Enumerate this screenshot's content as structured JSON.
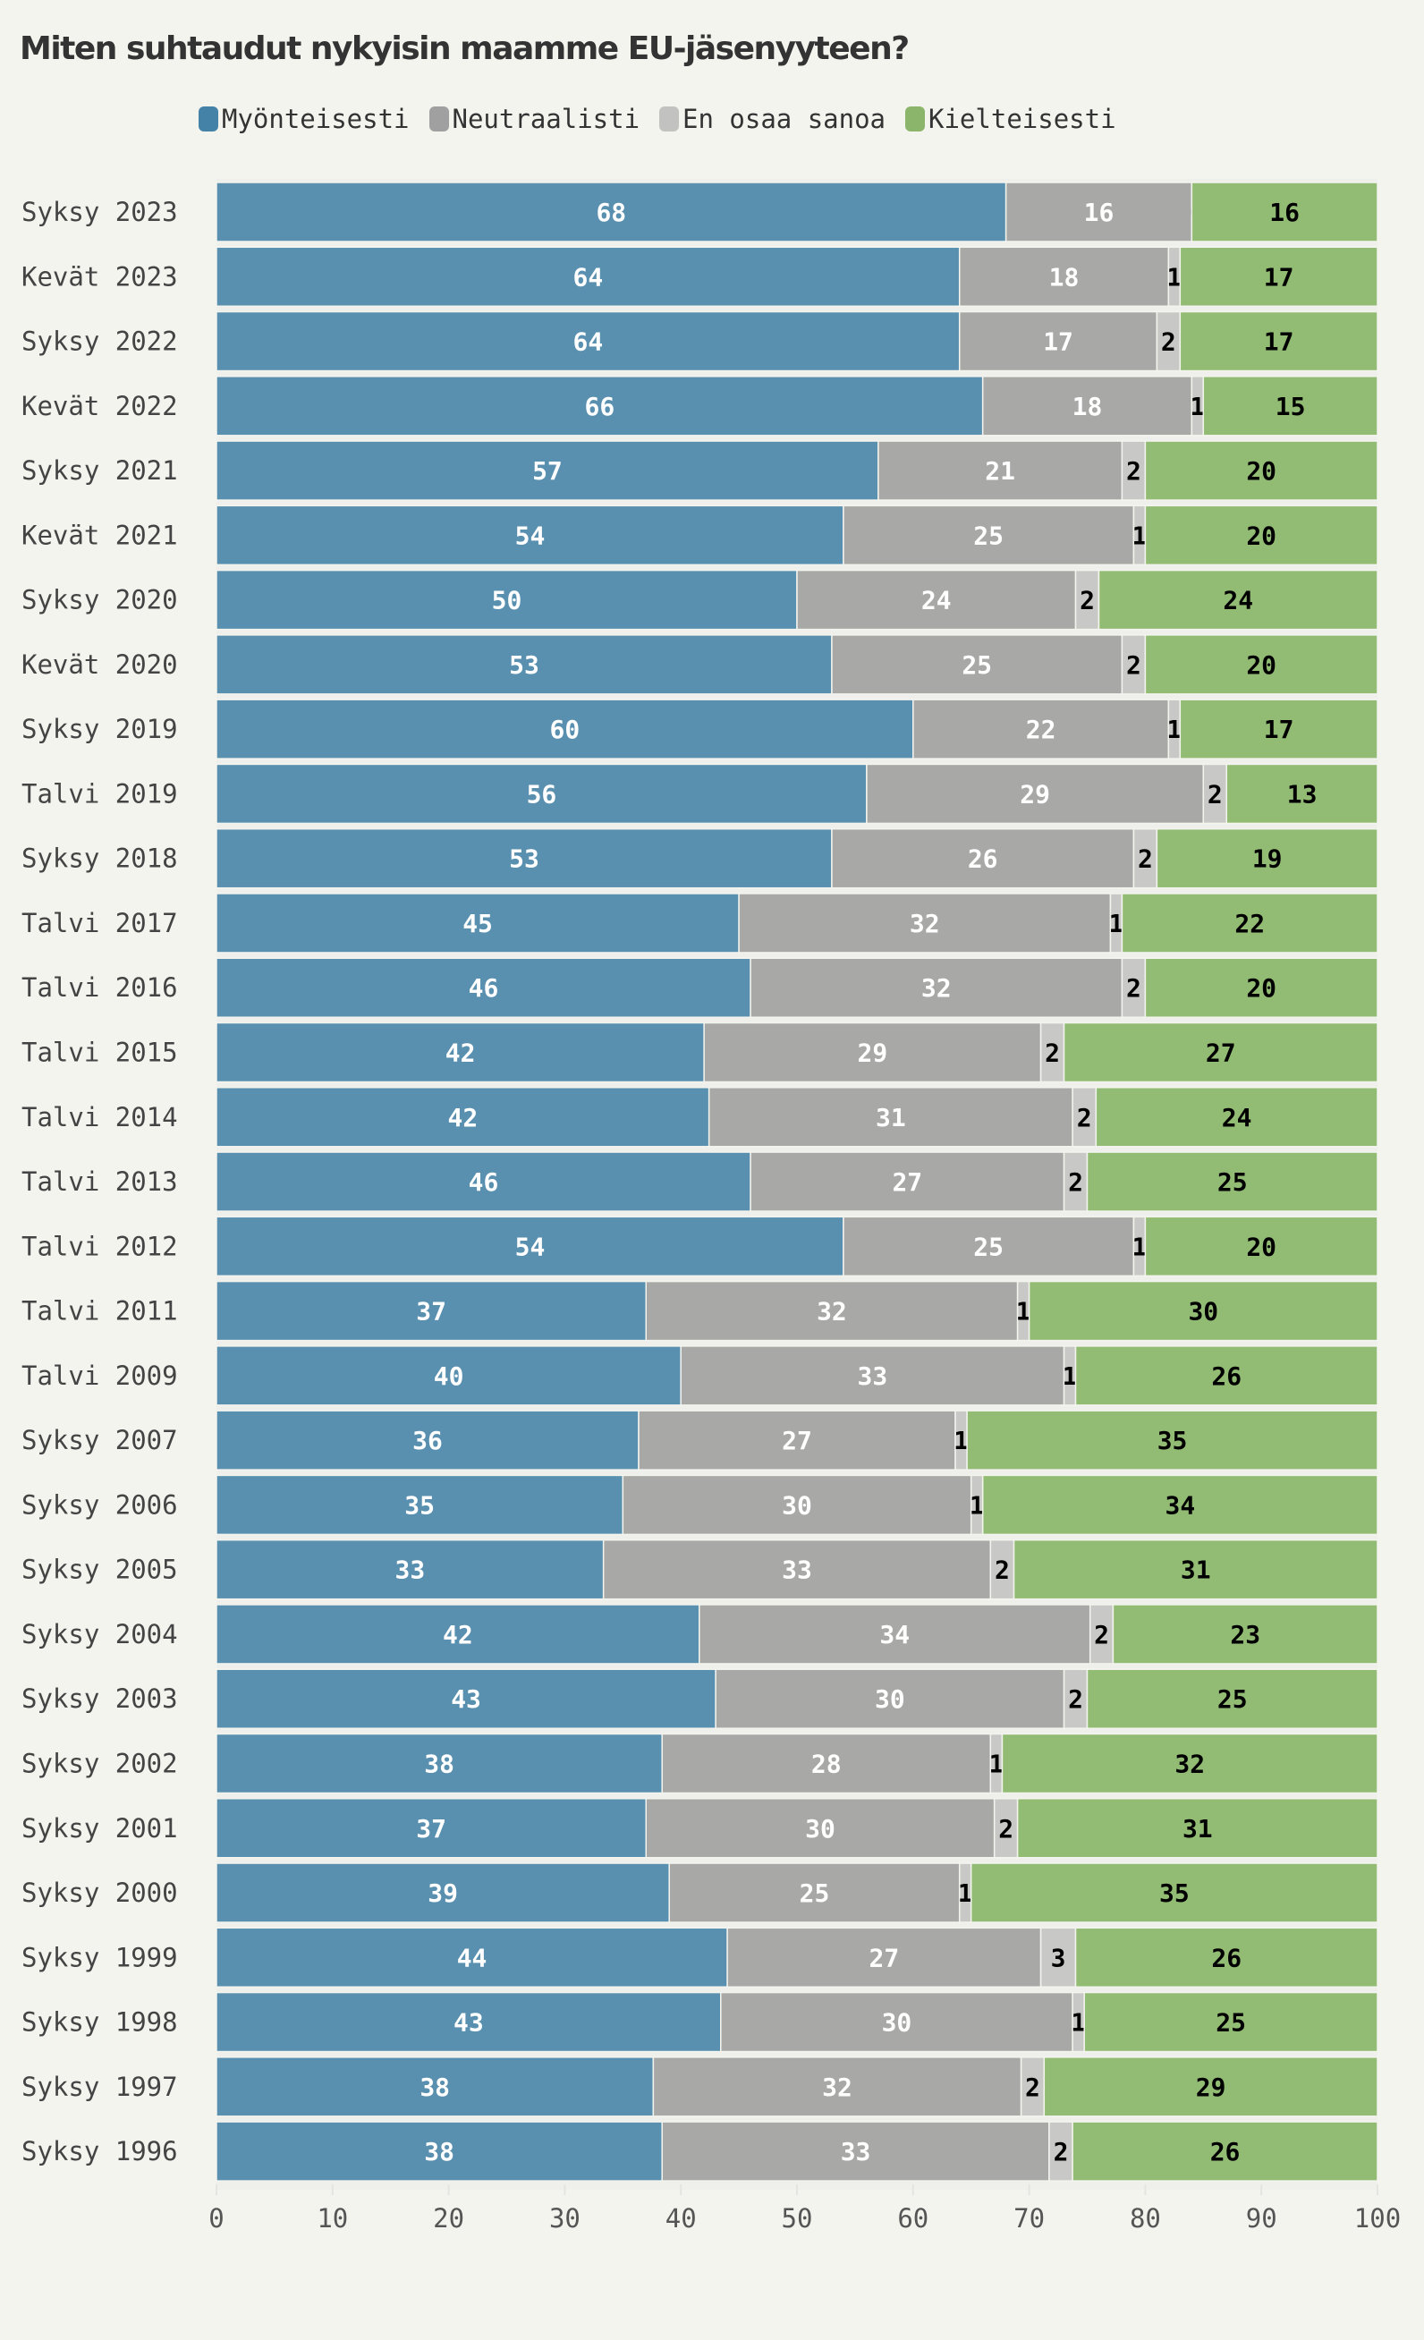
{
  "chart_data": {
    "type": "bar",
    "orientation": "horizontal-stacked",
    "title": "Miten suhtaudut nykyisin maamme EU-jäsenyyteen?",
    "xlim": [
      0,
      100
    ],
    "xticks": [
      0,
      10,
      20,
      30,
      40,
      50,
      60,
      70,
      80,
      90,
      100
    ],
    "legend_position": "top",
    "colors": {
      "Myönteisesti": "#5990af",
      "Neutraalisti": "#a8a8a7",
      "En osaa sanoa": "#c8c8c6",
      "Kielteisesti": "#92bb73"
    },
    "legend_colors": [
      "#4582a8",
      "#a0a0a0",
      "#c2c2c0",
      "#8ab56a"
    ],
    "categories": [
      "Syksy 2023",
      "Kevät 2023",
      "Syksy 2022",
      "Kevät 2022",
      "Syksy 2021",
      "Kevät 2021",
      "Syksy 2020",
      "Kevät 2020",
      "Syksy 2019",
      "Talvi 2019",
      "Syksy 2018",
      "Talvi 2017",
      "Talvi 2016",
      "Talvi 2015",
      "Talvi 2014",
      "Talvi 2013",
      "Talvi 2012",
      "Talvi 2011",
      "Talvi 2009",
      "Syksy 2007",
      "Syksy 2006",
      "Syksy 2005",
      "Syksy 2004",
      "Syksy 2003",
      "Syksy 2002",
      "Syksy 2001",
      "Syksy 2000",
      "Syksy 1999",
      "Syksy 1998",
      "Syksy 1997",
      "Syksy 1996"
    ],
    "series": [
      {
        "name": "Myönteisesti",
        "values": [
          68,
          64,
          64,
          66,
          57,
          54,
          50,
          53,
          60,
          56,
          53,
          45,
          46,
          42,
          42,
          46,
          54,
          37,
          40,
          36,
          35,
          33,
          42,
          43,
          38,
          37,
          39,
          44,
          43,
          38,
          38
        ]
      },
      {
        "name": "Neutraalisti",
        "values": [
          16,
          18,
          17,
          18,
          21,
          25,
          24,
          25,
          22,
          29,
          26,
          32,
          32,
          29,
          31,
          27,
          25,
          32,
          33,
          27,
          30,
          33,
          34,
          30,
          28,
          30,
          25,
          27,
          30,
          32,
          33
        ]
      },
      {
        "name": "En osaa sanoa",
        "values": [
          0,
          1,
          2,
          1,
          2,
          1,
          2,
          2,
          1,
          2,
          2,
          1,
          2,
          2,
          2,
          2,
          1,
          1,
          1,
          1,
          1,
          2,
          2,
          2,
          1,
          2,
          1,
          3,
          1,
          2,
          2
        ]
      },
      {
        "name": "Kielteisesti",
        "values": [
          16,
          17,
          17,
          15,
          20,
          20,
          24,
          20,
          17,
          13,
          19,
          22,
          20,
          27,
          24,
          25,
          20,
          30,
          26,
          35,
          34,
          31,
          23,
          25,
          32,
          31,
          35,
          26,
          25,
          29,
          26
        ]
      }
    ]
  }
}
